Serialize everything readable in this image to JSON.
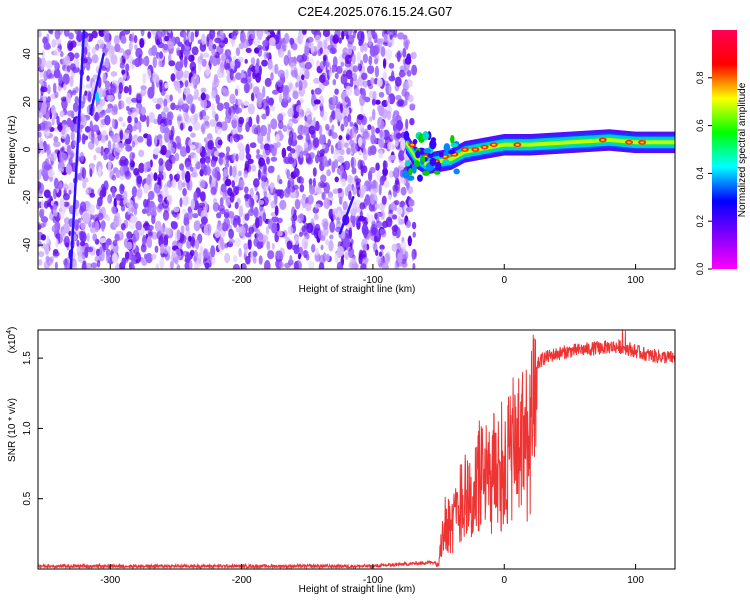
{
  "title": "C2E4.2025.076.15.24.G07",
  "chart_data": [
    {
      "type": "heatmap",
      "xlabel": "Height of straight line (km)",
      "ylabel": "Frequency (Hz)",
      "xlim": [
        -355,
        130
      ],
      "ylim": [
        -50,
        50
      ],
      "xticks": [
        -300,
        -200,
        -100,
        0,
        100
      ],
      "xtick_labels": [
        "-300",
        "-200",
        "-100",
        "0",
        "100"
      ],
      "yticks": [
        -40,
        -20,
        0,
        20,
        40
      ],
      "ytick_labels": [
        "-40",
        "-20",
        "0",
        "20",
        "40"
      ],
      "colorbar": {
        "label": "Normalized spectral amplitude",
        "range": [
          0,
          1
        ],
        "ticks": [
          0.0,
          0.2,
          0.4,
          0.6,
          0.8
        ],
        "tick_labels": [
          "0.0",
          "0.2",
          "0.4",
          "0.6",
          "0.8"
        ],
        "colormap": [
          "#ff00ff",
          "#7f00ff",
          "#0000ff",
          "#00ffff",
          "#00ff00",
          "#ffff00",
          "#ff0000",
          "#ff0055"
        ]
      },
      "features": {
        "noise_region_x": [
          -355,
          -73
        ],
        "signal_ridge": [
          {
            "x": -75,
            "y": 3
          },
          {
            "x": -68,
            "y": -3
          },
          {
            "x": -60,
            "y": -6
          },
          {
            "x": -50,
            "y": -5
          },
          {
            "x": -40,
            "y": -4
          },
          {
            "x": -30,
            "y": -1
          },
          {
            "x": -20,
            "y": 0
          },
          {
            "x": -10,
            "y": 1
          },
          {
            "x": 0,
            "y": 2
          },
          {
            "x": 20,
            "y": 2
          },
          {
            "x": 50,
            "y": 3
          },
          {
            "x": 80,
            "y": 4
          },
          {
            "x": 100,
            "y": 3
          },
          {
            "x": 130,
            "y": 3
          }
        ],
        "streaks": [
          {
            "x": [
              -330,
              -320
            ],
            "y": [
              -50,
              50
            ]
          },
          {
            "x": [
              -315,
              -305
            ],
            "y": [
              15,
              40
            ]
          },
          {
            "x": [
              -125,
              -115
            ],
            "y": [
              -35,
              -20
            ]
          }
        ]
      },
      "grid": false
    },
    {
      "type": "line",
      "xlabel": "Height of straight line (km)",
      "ylabel": "SNR (10 * v/v)",
      "yscale_label": "(x10",
      "yscale_exp": "4",
      "yscale_close": ")",
      "xlim": [
        -355,
        130
      ],
      "ylim": [
        0,
        1.7
      ],
      "xticks": [
        -300,
        -200,
        -100,
        0,
        100
      ],
      "xtick_labels": [
        "-300",
        "-200",
        "-100",
        "0",
        "100"
      ],
      "yticks": [
        0.5,
        1.0,
        1.5
      ],
      "ytick_labels": [
        "0.5",
        "1.0",
        "1.5"
      ],
      "line_color": "#ee3333",
      "series": [
        {
          "x": [
            -355,
            -100,
            -50,
            -45,
            -40,
            -35,
            -30,
            -25,
            -20,
            -15,
            -10,
            -5,
            0,
            5,
            10,
            15,
            20,
            25,
            30,
            40,
            50,
            60,
            70,
            80,
            90,
            100,
            110,
            120,
            130
          ],
          "y": [
            0.02,
            0.02,
            0.05,
            0.5,
            0.4,
            0.6,
            0.8,
            0.6,
            0.9,
            0.85,
            0.9,
            1.0,
            1.0,
            1.1,
            1.2,
            1.25,
            1.35,
            1.45,
            1.5,
            1.53,
            1.55,
            1.56,
            1.57,
            1.58,
            1.58,
            1.55,
            1.52,
            1.51,
            1.5
          ]
        }
      ],
      "grid": false
    }
  ]
}
